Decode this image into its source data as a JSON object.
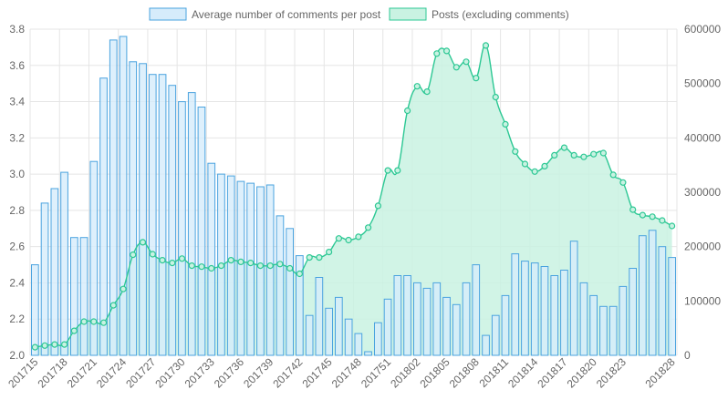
{
  "chart_data": {
    "type": "bar",
    "title": "",
    "xlabel": "",
    "grid": true,
    "legend_position": "top-center",
    "x_tick_labels": [
      "201715",
      "201718",
      "201721",
      "201724",
      "201727",
      "201730",
      "201733",
      "201736",
      "201739",
      "201742",
      "201745",
      "201748",
      "201751",
      "201802",
      "201805",
      "201808",
      "201811",
      "201814",
      "201817",
      "201820",
      "201823",
      "201828"
    ],
    "categories": [
      "201715",
      "201716",
      "201717",
      "201718",
      "201719",
      "201720",
      "201721",
      "201722",
      "201723",
      "201724",
      "201725",
      "201726",
      "201727",
      "201728",
      "201729",
      "201730",
      "201731",
      "201732",
      "201733",
      "201734",
      "201735",
      "201736",
      "201737",
      "201738",
      "201739",
      "201740",
      "201741",
      "201742",
      "201743",
      "201744",
      "201745",
      "201746",
      "201747",
      "201748",
      "201749",
      "201750",
      "201751",
      "201752",
      "201801",
      "201802",
      "201803",
      "201804",
      "201805",
      "201806",
      "201807",
      "201808",
      "201809",
      "201810",
      "201811",
      "201812",
      "201813",
      "201814",
      "201815",
      "201816",
      "201817",
      "201818",
      "201819",
      "201820",
      "201821",
      "201822",
      "201823",
      "201824",
      "201825",
      "201826",
      "201827",
      "201828"
    ],
    "y_left": {
      "min": 2.0,
      "max": 3.8,
      "ticks": [
        "2.0",
        "2.2",
        "2.4",
        "2.6",
        "2.8",
        "3.0",
        "3.2",
        "3.4",
        "3.6",
        "3.8"
      ]
    },
    "y_right": {
      "min": 0,
      "max": 600000,
      "ticks": [
        "0",
        "100000",
        "200000",
        "300000",
        "400000",
        "500000",
        "600000"
      ]
    },
    "series": [
      {
        "name": "Average number of comments per post",
        "type": "bar",
        "axis": "left",
        "fill": "#d6ecfb",
        "stroke": "#4aa3df",
        "values": [
          2.5,
          2.84,
          2.92,
          3.01,
          2.65,
          2.65,
          3.07,
          3.53,
          3.74,
          3.76,
          3.62,
          3.61,
          3.55,
          3.55,
          3.49,
          3.4,
          3.45,
          3.37,
          3.06,
          3.0,
          2.99,
          2.96,
          2.95,
          2.93,
          2.94,
          2.77,
          2.7,
          2.55,
          2.22,
          2.43,
          2.26,
          2.32,
          2.2,
          2.12,
          2.02,
          2.18,
          2.31,
          2.44,
          2.44,
          2.4,
          2.37,
          2.4,
          2.32,
          2.28,
          2.4,
          2.5,
          2.11,
          2.22,
          2.33,
          2.56,
          2.52,
          2.51,
          2.49,
          2.44,
          2.47,
          2.63,
          2.4,
          2.33,
          2.27,
          2.27,
          2.38,
          2.48,
          2.66,
          2.69,
          2.6,
          2.54
        ]
      },
      {
        "name": "Posts (excluding comments)",
        "type": "area",
        "axis": "right",
        "fill": "#c9f2e2",
        "stroke": "#2dc894",
        "values": [
          15000,
          18000,
          20000,
          20000,
          45000,
          62000,
          62000,
          60000,
          92000,
          122000,
          185000,
          208000,
          186000,
          175000,
          170000,
          178000,
          165000,
          163000,
          160000,
          165000,
          175000,
          172000,
          170000,
          165000,
          165000,
          168000,
          160000,
          150000,
          180000,
          180000,
          190000,
          215000,
          212000,
          218000,
          235000,
          275000,
          340000,
          340000,
          450000,
          495000,
          485000,
          555000,
          560000,
          530000,
          540000,
          510000,
          570000,
          475000,
          425000,
          375000,
          352000,
          338000,
          348000,
          368000,
          382000,
          368000,
          365000,
          370000,
          372000,
          332000,
          318000,
          268000,
          258000,
          255000,
          248000,
          238000
        ]
      }
    ]
  }
}
